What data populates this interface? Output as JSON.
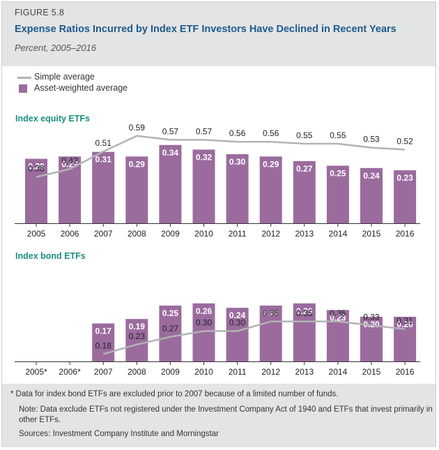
{
  "header": {
    "figure_label": "FIGURE 5.8",
    "title": "Expense Ratios Incurred by Index ETF Investors Have Declined in Recent Years",
    "subtitle": "Percent, 2005–2016"
  },
  "legend": {
    "line_label": "Simple average",
    "bar_label": "Asset-weighted average"
  },
  "colors": {
    "bar": "#9b6b9e",
    "line": "#b3b3b3",
    "section_title": "#1a8f80",
    "title": "#1f5a8c"
  },
  "chart_data": [
    {
      "type": "bar+line",
      "title": "Index equity ETFs",
      "categories": [
        "2005",
        "2006",
        "2007",
        "2008",
        "2009",
        "2010",
        "2011",
        "2012",
        "2013",
        "2014",
        "2015",
        "2016"
      ],
      "series": [
        {
          "name": "Asset-weighted average",
          "kind": "bar",
          "values": [
            0.28,
            0.29,
            0.31,
            0.29,
            0.34,
            0.32,
            0.3,
            0.29,
            0.27,
            0.25,
            0.24,
            0.23
          ],
          "labels": [
            "0.28",
            "0.29",
            "0.31",
            "0.29",
            "0.34",
            "0.32",
            "0.30",
            "0.29",
            "0.27",
            "0.25",
            "0.24",
            "0.23"
          ]
        },
        {
          "name": "Simple average",
          "kind": "line",
          "values": [
            0.38,
            0.42,
            0.51,
            0.59,
            0.57,
            0.57,
            0.56,
            0.56,
            0.55,
            0.55,
            0.53,
            0.52
          ],
          "labels": [
            "0.38",
            "0.42",
            "0.51",
            "0.59",
            "0.57",
            "0.57",
            "0.56",
            "0.56",
            "0.55",
            "0.55",
            "0.53",
            "0.52"
          ]
        }
      ],
      "ylim": [
        0,
        0.7
      ]
    },
    {
      "type": "bar+line",
      "title": "Index bond ETFs",
      "categories": [
        "2005*",
        "2006*",
        "2007",
        "2008",
        "2009",
        "2010",
        "2011",
        "2012",
        "2013",
        "2014",
        "2015",
        "2016"
      ],
      "series": [
        {
          "name": "Asset-weighted average",
          "kind": "bar",
          "values": [
            null,
            null,
            0.17,
            0.19,
            0.25,
            0.26,
            0.24,
            0.25,
            0.26,
            0.23,
            0.2,
            0.2
          ],
          "labels": [
            null,
            null,
            "0.17",
            "0.19",
            "0.25",
            "0.26",
            "0.24",
            "0.25",
            "0.26",
            "0.23",
            "0.20",
            "0.20"
          ]
        },
        {
          "name": "Simple average",
          "kind": "line",
          "values": [
            null,
            null,
            0.18,
            0.23,
            0.27,
            0.3,
            0.3,
            0.35,
            0.35,
            0.35,
            0.33,
            0.31
          ],
          "labels": [
            null,
            null,
            "0.18",
            "0.23",
            "0.27",
            "0.30",
            "0.30",
            "0.35",
            "0.35",
            "0.35",
            "0.33",
            "0.31"
          ]
        }
      ],
      "ylim": [
        0,
        0.7
      ]
    }
  ],
  "footer": {
    "footnote": "* Data for index bond ETFs are excluded prior to 2007 because of a limited number of funds.",
    "note_line1": "Note: Data exclude ETFs not registered under the Investment Company Act of 1940 and ETFs that invest primarily in",
    "note_line2": "other ETFs.",
    "sources": "Sources: Investment Company Institute and Morningstar"
  }
}
